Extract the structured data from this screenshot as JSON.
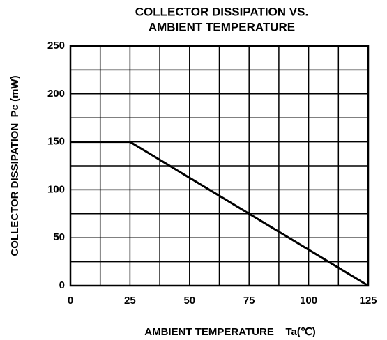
{
  "chart_data": {
    "type": "line",
    "title": [
      "COLLECTOR DISSIPATION VS.",
      "AMBIENT TEMPERATURE"
    ],
    "xlabel": "AMBIENT TEMPERATURE    Ta(℃)",
    "ylabel": "COLLECTOR DISSIPATION  Pc (mW)",
    "x": [
      0,
      25,
      125
    ],
    "series": [
      {
        "color": "#000000",
        "values": [
          150,
          150,
          0
        ]
      }
    ],
    "xlim": [
      0,
      125
    ],
    "xticks": [
      0,
      25,
      50,
      75,
      100,
      125
    ],
    "xminorticks": [
      12.5,
      37.5,
      62.5,
      87.5,
      112.5
    ],
    "ylim": [
      0,
      250
    ],
    "yticks": [
      0,
      50,
      100,
      150,
      200,
      250
    ],
    "yminorticks": [
      25,
      75,
      125,
      175,
      225
    ],
    "grid": true
  }
}
